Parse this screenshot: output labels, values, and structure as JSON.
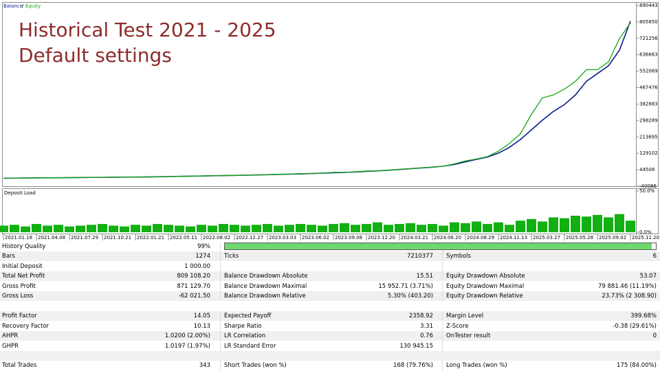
{
  "chart_data": [
    {
      "type": "line",
      "annotations": [
        "Historical Test 2021 - 2025",
        "Default settings"
      ],
      "ylim": [
        -40086,
        890443
      ],
      "yticks": [
        890443,
        805850,
        721256,
        636663,
        552069,
        467476,
        382883,
        298289,
        213695,
        129102,
        44508,
        -40086
      ],
      "series": [
        {
          "name": "Balance",
          "color": "#0a1a8c",
          "values": [
            1000,
            1500,
            2000,
            2500,
            3000,
            3500,
            4000,
            4500,
            5000,
            5500,
            6000,
            6500,
            7000,
            7500,
            8500,
            9500,
            10500,
            11500,
            12500,
            13500,
            14500,
            15500,
            16500,
            17500,
            19000,
            20500,
            22000,
            23500,
            25000,
            27000,
            29000,
            31000,
            33000,
            36000,
            39000,
            42000,
            46000,
            50000,
            54000,
            58000,
            63000,
            72000,
            85000,
            98000,
            110000,
            130000,
            160000,
            200000,
            250000,
            300000,
            345000,
            380000,
            430000,
            500000,
            540000,
            580000,
            660000,
            810000
          ]
        },
        {
          "name": "Equity",
          "color": "#12a812",
          "values": [
            1000,
            1500,
            2000,
            2500,
            3000,
            3500,
            4000,
            4500,
            5000,
            5500,
            6000,
            6500,
            7000,
            7500,
            8500,
            9500,
            10500,
            11500,
            12500,
            13500,
            14500,
            15500,
            16500,
            17500,
            19000,
            21500,
            22000,
            25000,
            25000,
            27000,
            31000,
            31000,
            34000,
            38000,
            39000,
            42000,
            47000,
            50000,
            54000,
            58000,
            63000,
            75000,
            90000,
            100000,
            112000,
            140000,
            180000,
            230000,
            330000,
            415000,
            430000,
            460000,
            500000,
            560000,
            560000,
            600000,
            720000,
            800000
          ]
        }
      ]
    },
    {
      "type": "bar",
      "title": "Deposit Load",
      "color": "#12b012",
      "ylim": [
        0,
        50
      ],
      "yticks": [
        {
          "value": 50,
          "label": "50.0%"
        },
        {
          "value": 0,
          "label": "0.0%"
        }
      ],
      "categories": [
        "2021.01.18",
        null,
        null,
        "2021.04.08",
        null,
        null,
        "2021.07.29",
        null,
        null,
        "2021.10.21",
        null,
        null,
        "2022.01.21",
        null,
        null,
        "2022.05.11",
        null,
        null,
        "2022.08.02",
        null,
        null,
        "2022.12.27",
        null,
        null,
        "2023.03.03",
        null,
        null,
        "2023.06.02",
        null,
        null,
        "2023.09.08",
        null,
        null,
        "2023.12.20",
        null,
        null,
        "2024.03.21",
        null,
        null,
        "2024.06.20",
        null,
        null,
        "2024.08.29",
        null,
        null,
        "2024.11.13",
        null,
        null,
        "2025.03.27",
        null,
        null,
        "2025.05.28",
        null,
        null,
        "2025.09.02",
        null,
        null,
        "2025.11.20"
      ],
      "values": [
        8,
        9,
        7,
        10,
        8,
        9,
        7,
        8,
        9,
        10,
        8,
        7,
        9,
        8,
        10,
        9,
        8,
        7,
        9,
        8,
        10,
        9,
        8,
        9,
        10,
        8,
        9,
        10,
        9,
        8,
        10,
        11,
        9,
        10,
        12,
        9,
        10,
        11,
        9,
        10,
        8,
        12,
        11,
        13,
        10,
        12,
        9,
        14,
        16,
        13,
        18,
        17,
        20,
        19,
        21,
        18,
        22,
        14
      ]
    }
  ],
  "table": {
    "history_quality_bar": 99,
    "groups": [
      [
        [
          "History Quality",
          "99%"
        ],
        [
          "Bars",
          "1274",
          "Ticks",
          "7210377",
          "Symbols",
          "6"
        ],
        [
          "Initial Deposit",
          "1 000.00"
        ],
        [
          "Total Net Profit",
          "809 108.20",
          "Balance Drawdown Absolute",
          "15.51",
          "Equity Drawdown Absolute",
          "53.07"
        ],
        [
          "Gross Profit",
          "871 129.70",
          "Balance Drawdown Maximal",
          "15 952.71 (3.71%)",
          "Equity Drawdown Maximal",
          "79 881.46 (11.19%)"
        ],
        [
          "Gross Loss",
          "-62 021.50",
          "Balance Drawdown Relative",
          "5.30% (403.20)",
          "Equity Drawdown Relative",
          "23.73% (2 308.90)"
        ]
      ],
      [
        [
          "Profit Factor",
          "14.05",
          "Expected Payoff",
          "2358.92",
          "Margin Level",
          "399.68%"
        ],
        [
          "Recovery Factor",
          "10.13",
          "Sharpe Ratio",
          "3.31",
          "Z-Score",
          "-0.38 (29.61%)"
        ],
        [
          "AHPR",
          "1.0200 (2.00%)",
          "LR Correlation",
          "0.76",
          "OnTester result",
          "0"
        ],
        [
          "GHPR",
          "1.0197 (1.97%)",
          "LR Standard Error",
          "130 945.15"
        ]
      ],
      [
        [
          "Total Trades",
          "343",
          "Short Trades (won %)",
          "168 (79.76%)",
          "Long Trades (won %)",
          "175 (84.00%)"
        ]
      ]
    ]
  }
}
